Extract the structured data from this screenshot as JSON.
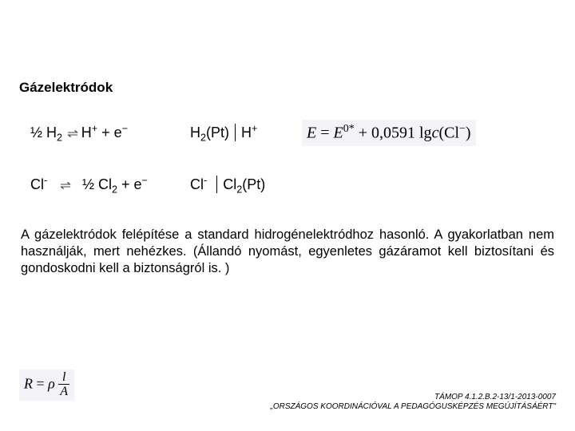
{
  "section_title": "Gázelektródok",
  "reaction1": {
    "lhs_species": "½ H",
    "lhs_idx": "2",
    "arrow": "⇌",
    "product_species": "H",
    "product_charge": "+",
    "electron_term": " + e",
    "electron_charge": "−",
    "notation_species_left": "H",
    "notation_idx": "2",
    "notation_phase": "(Pt)",
    "notation_species_right": "H",
    "notation_right_charge": "+",
    "formula_E": "E",
    "formula_eq": " = ",
    "formula_Estar": "E",
    "formula_star_sup": "0*",
    "formula_plus": " + 0,0591 lg",
    "formula_c": "c",
    "formula_open": "(Cl",
    "formula_cl_sup": "−",
    "formula_close": ")"
  },
  "reaction2": {
    "lhs_species": "Cl",
    "lhs_charge": "-",
    "arrow": "⇌",
    "product_frac": "½ Cl",
    "product_idx": "2",
    "electron_term": " + e",
    "electron_charge": "−",
    "notation_left": "Cl",
    "notation_left_charge": "-",
    "notation_right": "Cl",
    "notation_right_idx": "2",
    "notation_phase": "(Pt)"
  },
  "paragraph": "A gázelektródok felépítése a standard hidrogénelektródhoz hasonló. A gyakorlatban nem használják, mert nehézkes. (Állandó nyomást, egyenletes gázáramot kell biztosítani és gondoskodni kell a biztonságról is. )",
  "resist": {
    "R": "R",
    "eq": " = ",
    "rho": "ρ",
    "num": "l",
    "den": "A"
  },
  "footer_line1": "TÁMOP 4.1.2.B.2-13/1-2013-0007",
  "footer_line2": "„ORSZÁGOS KOORDINÁCIÓVAL A PEDAGÓGUSKÉPZÉS MEGÚJÍTÁSÁÉRT\""
}
